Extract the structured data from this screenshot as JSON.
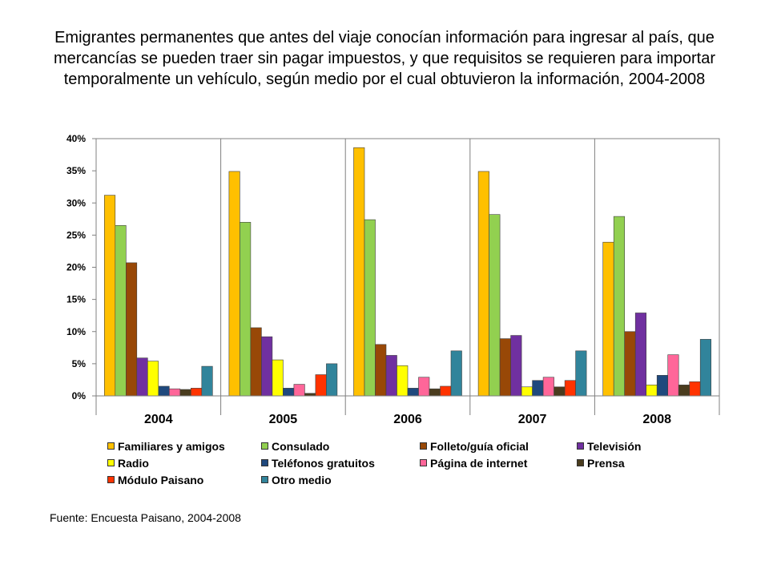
{
  "title": "Emigrantes permanentes que antes del viaje conocían información para ingresar al país, que mercancías se pueden traer sin pagar impuestos, y que requisitos se requieren para importar temporalmente un vehículo,  según medio por el cual obtuvieron la información, 2004-2008",
  "source": "Fuente: Encuesta Paisano, 2004-2008",
  "chart_data": {
    "type": "bar",
    "categories": [
      "2004",
      "2005",
      "2006",
      "2007",
      "2008"
    ],
    "ylim": [
      0,
      40
    ],
    "yticks": [
      "0%",
      "5%",
      "10%",
      "15%",
      "20%",
      "25%",
      "30%",
      "35%",
      "40%"
    ],
    "grid": false,
    "legend_position": "bottom",
    "series": [
      {
        "name": "Familiares y amigos",
        "color": "#FFC000",
        "values": [
          31.2,
          34.9,
          38.6,
          34.9,
          23.9
        ]
      },
      {
        "name": "Consulado",
        "color": "#92D050",
        "values": [
          26.5,
          27.0,
          27.4,
          28.2,
          27.9
        ]
      },
      {
        "name": "Folleto/guía oficial",
        "color": "#984807",
        "values": [
          20.7,
          10.6,
          8.0,
          8.9,
          10.0
        ]
      },
      {
        "name": "Televisión",
        "color": "#7030A0",
        "values": [
          5.9,
          9.2,
          6.3,
          9.4,
          12.9
        ]
      },
      {
        "name": "Radio",
        "color": "#FFFF00",
        "values": [
          5.4,
          5.6,
          4.7,
          1.4,
          1.7
        ]
      },
      {
        "name": "Teléfonos gratuitos",
        "color": "#1F497D",
        "values": [
          1.5,
          1.2,
          1.2,
          2.4,
          3.2
        ]
      },
      {
        "name": "Página de internet",
        "color": "#FF6699",
        "values": [
          1.1,
          1.8,
          2.9,
          2.9,
          6.4
        ]
      },
      {
        "name": "Prensa",
        "color": "#4A3C1E",
        "values": [
          1.0,
          0.4,
          1.1,
          1.4,
          1.7
        ]
      },
      {
        "name": "Módulo Paisano",
        "color": "#FF3300",
        "values": [
          1.2,
          3.3,
          1.5,
          2.4,
          2.2
        ]
      },
      {
        "name": "Otro medio",
        "color": "#31849B",
        "values": [
          4.6,
          5.0,
          7.0,
          7.0,
          8.8
        ]
      }
    ]
  }
}
